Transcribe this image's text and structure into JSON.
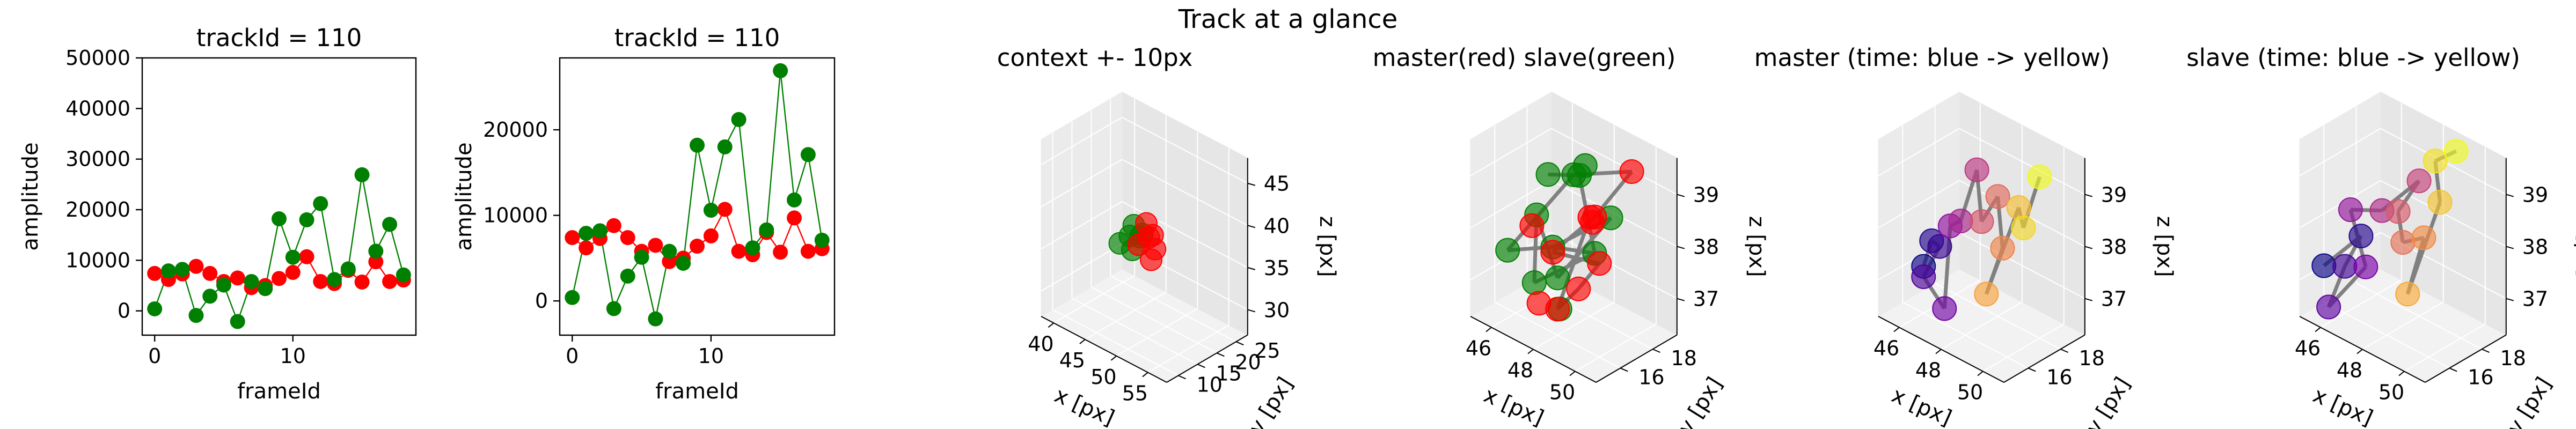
{
  "suptitle": "Track at a glance",
  "colors": {
    "master": "#ff0000",
    "slave": "#008000",
    "edge": "#808080"
  },
  "chart_data": [
    {
      "type": "line",
      "title": "trackId = 110",
      "xlabel": "frameId",
      "ylabel": "amplitude",
      "xlim": [
        -0.9,
        18.9
      ],
      "ylim": [
        -4800,
        50000
      ],
      "xticks": [
        0,
        10
      ],
      "yticks": [
        0,
        10000,
        20000,
        30000,
        40000,
        50000
      ],
      "x": [
        0,
        1,
        2,
        3,
        4,
        5,
        6,
        7,
        8,
        9,
        10,
        11,
        12,
        13,
        14,
        15,
        16,
        17,
        18
      ],
      "series": [
        {
          "values": [
            7400,
            6200,
            7300,
            8800,
            7400,
            5800,
            6500,
            4600,
            5000,
            6400,
            7600,
            10700,
            5800,
            5400,
            8000,
            5700,
            9700,
            5800,
            6100
          ]
        },
        {
          "values": [
            400,
            7900,
            8200,
            -900,
            2900,
            5100,
            -2100,
            5800,
            4400,
            18200,
            10600,
            18000,
            21200,
            6200,
            8300,
            26900,
            11800,
            17100,
            7100
          ]
        }
      ]
    },
    {
      "type": "line",
      "title": "trackId = 110",
      "xlabel": "frameId",
      "ylabel": "amplitude",
      "xlim": [
        -0.9,
        18.9
      ],
      "ylim": [
        -4000,
        28400
      ],
      "xticks": [
        0,
        10
      ],
      "yticks": [
        0,
        10000,
        20000
      ],
      "x": [
        0,
        1,
        2,
        3,
        4,
        5,
        6,
        7,
        8,
        9,
        10,
        11,
        12,
        13,
        14,
        15,
        16,
        17,
        18
      ],
      "series": [
        {
          "values": [
            7400,
            6200,
            7300,
            8800,
            7400,
            5800,
            6500,
            4600,
            5000,
            6400,
            7600,
            10700,
            5800,
            5400,
            8000,
            5700,
            9700,
            5800,
            6100
          ]
        },
        {
          "values": [
            400,
            7900,
            8200,
            -900,
            2900,
            5100,
            -2100,
            5800,
            4400,
            18200,
            10600,
            18000,
            21200,
            6200,
            8300,
            26900,
            11800,
            17100,
            7100
          ]
        }
      ]
    },
    {
      "type": "scatter",
      "title": "context +- 10px",
      "xlabel": "x [px]",
      "ylabel": "y [px]",
      "zlabel": "z [px]",
      "xlim": [
        38,
        58
      ],
      "ylim": [
        7,
        28
      ],
      "zlim": [
        27,
        48
      ],
      "xticks": [
        40,
        45,
        50,
        55
      ],
      "yticks": [
        10,
        15,
        20,
        25
      ],
      "zticks": [
        30,
        35,
        40,
        45
      ],
      "points": [
        {
          "x": 45,
          "y": 16,
          "z": 36,
          "c": "slave"
        },
        {
          "x": 46,
          "y": 17,
          "z": 37,
          "c": "slave"
        },
        {
          "x": 47,
          "y": 16,
          "z": 36,
          "c": "slave"
        },
        {
          "x": 48,
          "y": 17,
          "z": 38,
          "c": "slave"
        },
        {
          "x": 46,
          "y": 18,
          "z": 38,
          "c": "slave"
        },
        {
          "x": 47,
          "y": 18,
          "z": 37,
          "c": "slave"
        },
        {
          "x": 48,
          "y": 16,
          "z": 37,
          "c": "master"
        },
        {
          "x": 49,
          "y": 17,
          "z": 38,
          "c": "master"
        },
        {
          "x": 50,
          "y": 17,
          "z": 37,
          "c": "master"
        },
        {
          "x": 49,
          "y": 18,
          "z": 38,
          "c": "master"
        },
        {
          "x": 50,
          "y": 16,
          "z": 36,
          "c": "master"
        },
        {
          "x": 48,
          "y": 18,
          "z": 39,
          "c": "master"
        }
      ]
    },
    {
      "type": "scatter",
      "title": "master(red) slave(green)",
      "xlabel": "x [px]",
      "ylabel": "y [px]",
      "zlabel": "z [px]",
      "xlim": [
        45,
        51
      ],
      "ylim": [
        14.5,
        19.5
      ],
      "zlim": [
        36.3,
        39.7
      ],
      "xticks": [
        46,
        48,
        50
      ],
      "yticks": [
        16,
        18
      ],
      "zticks": [
        37,
        38,
        39
      ],
      "points": [
        {
          "x": 48,
          "y": 17,
          "z": 39.2,
          "c": "slave"
        },
        {
          "x": 47,
          "y": 16,
          "z": 38.4,
          "c": "slave"
        },
        {
          "x": 46,
          "y": 15.5,
          "z": 37.6,
          "c": "slave"
        },
        {
          "x": 47,
          "y": 17,
          "z": 37.6,
          "c": "slave"
        },
        {
          "x": 48,
          "y": 16,
          "z": 37.4,
          "c": "slave"
        },
        {
          "x": 46,
          "y": 18,
          "z": 38.6,
          "c": "slave"
        },
        {
          "x": 49,
          "y": 17,
          "z": 37.9,
          "c": "slave"
        },
        {
          "x": 47.5,
          "y": 18,
          "z": 38.9,
          "c": "slave"
        },
        {
          "x": 46.5,
          "y": 16.5,
          "z": 36.9,
          "c": "slave"
        },
        {
          "x": 49,
          "y": 18,
          "z": 38.4,
          "c": "slave"
        },
        {
          "x": 48.5,
          "y": 15.5,
          "z": 37,
          "c": "slave"
        },
        {
          "x": 47,
          "y": 19,
          "z": 38.8,
          "c": "slave"
        },
        {
          "x": 50,
          "y": 18,
          "z": 39.5,
          "c": "master"
        },
        {
          "x": 49,
          "y": 17,
          "z": 38.6,
          "c": "master"
        },
        {
          "x": 50,
          "y": 16,
          "z": 38.1,
          "c": "master"
        },
        {
          "x": 49,
          "y": 16,
          "z": 37.4,
          "c": "master"
        },
        {
          "x": 48,
          "y": 16,
          "z": 36.8,
          "c": "master"
        },
        {
          "x": 47,
          "y": 17,
          "z": 37.5,
          "c": "master"
        },
        {
          "x": 48,
          "y": 18,
          "z": 38.2,
          "c": "master"
        },
        {
          "x": 46,
          "y": 17,
          "z": 37.8,
          "c": "master"
        },
        {
          "x": 48.5,
          "y": 17.5,
          "z": 38.3,
          "c": "master"
        },
        {
          "x": 47.5,
          "y": 15.5,
          "z": 36.9,
          "c": "master"
        }
      ],
      "edges": [
        [
          0,
          2
        ],
        [
          2,
          3
        ],
        [
          3,
          6
        ],
        [
          6,
          8
        ],
        [
          8,
          1
        ],
        [
          1,
          4
        ],
        [
          4,
          9
        ],
        [
          9,
          3
        ],
        [
          5,
          7
        ],
        [
          7,
          6
        ],
        [
          0,
          12
        ],
        [
          12,
          13
        ],
        [
          13,
          17
        ],
        [
          17,
          14
        ],
        [
          14,
          15
        ],
        [
          15,
          16
        ],
        [
          16,
          18
        ],
        [
          18,
          20
        ]
      ]
    },
    {
      "type": "scatter",
      "title": "master (time: blue -> yellow)",
      "xlabel": "x [px]",
      "ylabel": "y [px]",
      "zlabel": "z [px]",
      "xlim": [
        45,
        51
      ],
      "ylim": [
        14.5,
        19.5
      ],
      "zlim": [
        36.3,
        39.7
      ],
      "xticks": [
        46,
        48,
        50
      ],
      "yticks": [
        16,
        18
      ],
      "zticks": [
        37,
        38,
        39
      ],
      "colormap": "plasma",
      "points": [
        {
          "x": 46,
          "y": 16,
          "z": 37.2,
          "t": 0.0
        },
        {
          "x": 46,
          "y": 16.5,
          "z": 37.6,
          "t": 0.05
        },
        {
          "x": 46,
          "y": 17,
          "z": 37.4,
          "t": 0.1
        },
        {
          "x": 46,
          "y": 16,
          "z": 37.0,
          "t": 0.15
        },
        {
          "x": 47,
          "y": 16,
          "z": 36.6,
          "t": 0.22
        },
        {
          "x": 46.5,
          "y": 17,
          "z": 37.9,
          "t": 0.3
        },
        {
          "x": 47,
          "y": 17,
          "z": 38.1,
          "t": 0.38
        },
        {
          "x": 47,
          "y": 18,
          "z": 38.9,
          "t": 0.45
        },
        {
          "x": 48,
          "y": 17,
          "z": 38.3,
          "t": 0.55
        },
        {
          "x": 48,
          "y": 18,
          "z": 38.6,
          "t": 0.62
        },
        {
          "x": 49,
          "y": 17,
          "z": 38.0,
          "t": 0.7
        },
        {
          "x": 49,
          "y": 16,
          "z": 37.3,
          "t": 0.78
        },
        {
          "x": 49,
          "y": 18,
          "z": 38.6,
          "t": 0.85
        },
        {
          "x": 50,
          "y": 17,
          "z": 38.6,
          "t": 0.92
        },
        {
          "x": 50,
          "y": 18,
          "z": 39.4,
          "t": 1.0
        }
      ]
    },
    {
      "type": "scatter",
      "title": "slave (time: blue -> yellow)",
      "xlabel": "x [px]",
      "ylabel": "y [px]",
      "zlabel": "z [px]",
      "xlim": [
        45,
        51
      ],
      "ylim": [
        14.5,
        19.5
      ],
      "zlim": [
        36.3,
        39.7
      ],
      "xticks": [
        46,
        48,
        50
      ],
      "yticks": [
        16,
        18
      ],
      "zticks": [
        37,
        38,
        39
      ],
      "colormap": "plasma",
      "points": [
        {
          "x": 45,
          "y": 16,
          "z": 37.0,
          "t": 0.0
        },
        {
          "x": 46,
          "y": 17,
          "z": 37.6,
          "t": 0.06
        },
        {
          "x": 46,
          "y": 16,
          "z": 37.2,
          "t": 0.12
        },
        {
          "x": 46,
          "y": 15,
          "z": 36.6,
          "t": 0.18
        },
        {
          "x": 47,
          "y": 16,
          "z": 37.4,
          "t": 0.24
        },
        {
          "x": 45.5,
          "y": 17,
          "z": 38.0,
          "t": 0.32
        },
        {
          "x": 47,
          "y": 17,
          "z": 38.3,
          "t": 0.4
        },
        {
          "x": 48,
          "y": 18,
          "z": 38.9,
          "t": 0.48
        },
        {
          "x": 47,
          "y": 18,
          "z": 38.1,
          "t": 0.56
        },
        {
          "x": 48,
          "y": 17,
          "z": 37.9,
          "t": 0.64
        },
        {
          "x": 49,
          "y": 17,
          "z": 38.2,
          "t": 0.72
        },
        {
          "x": 49,
          "y": 16,
          "z": 37.3,
          "t": 0.8
        },
        {
          "x": 49,
          "y": 18,
          "z": 38.7,
          "t": 0.87
        },
        {
          "x": 48,
          "y": 19,
          "z": 39.1,
          "t": 0.94
        },
        {
          "x": 49,
          "y": 19,
          "z": 39.5,
          "t": 1.0
        }
      ]
    }
  ]
}
